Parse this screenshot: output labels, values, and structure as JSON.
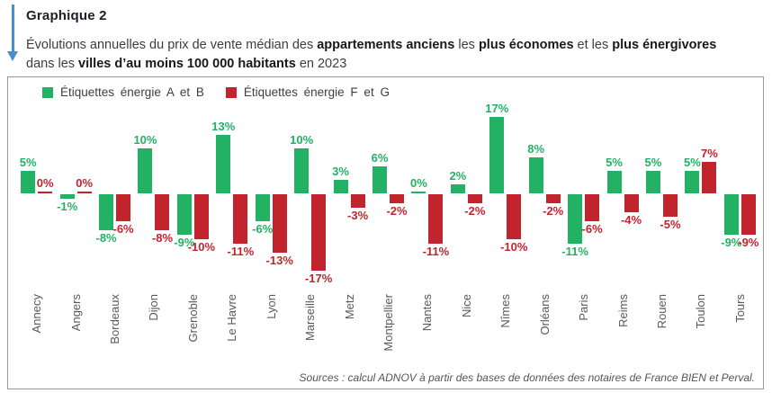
{
  "header": {
    "label": "Graphique 2",
    "description_lines": [
      [
        {
          "text": "Évolutions annuelles du prix de vente médian des ",
          "bold": false
        },
        {
          "text": "appartements anciens",
          "bold": true
        },
        {
          "text": " les ",
          "bold": false
        },
        {
          "text": "plus économes",
          "bold": true
        },
        {
          "text": " et les ",
          "bold": false
        },
        {
          "text": "plus énergivores",
          "bold": true
        }
      ],
      [
        {
          "text": "dans les ",
          "bold": false
        },
        {
          "text": "villes d’au moins 100 000 habitants",
          "bold": true
        },
        {
          "text": " en 2023",
          "bold": false
        }
      ]
    ]
  },
  "chart": {
    "source": "Sources : calcul ADNOV à partir des bases de données des notaires de France BIEN et Perval."
  },
  "chart_data": {
    "type": "bar",
    "title": "Graphique 2 — Évolutions annuelles du prix de vente médian des appartements anciens les plus économes et les plus énergivores dans les villes d’au moins 100 000 habitants en 2023",
    "xlabel": "",
    "ylabel": "",
    "value_suffix": "%",
    "ylim": [
      -17,
      17
    ],
    "grid": false,
    "legend_position": "top",
    "categories": [
      "Annecy",
      "Angers",
      "Bordeaux",
      "Dijon",
      "Grenoble",
      "Le Havre",
      "Lyon",
      "Marseille",
      "Metz",
      "Montpellier",
      "Nantes",
      "Nice",
      "Nîmes",
      "Orléans",
      "Paris",
      "Reims",
      "Rouen",
      "Toulon",
      "Tours"
    ],
    "series": [
      {
        "name": "Étiquettes énergie A et B",
        "color": "#23b164",
        "values": [
          5,
          -1,
          -8,
          10,
          -9,
          13,
          -6,
          10,
          3,
          6,
          0,
          2,
          17,
          8,
          -11,
          5,
          5,
          5,
          -9
        ]
      },
      {
        "name": "Étiquettes énergie F et G",
        "color": "#c2242e",
        "values": [
          0,
          0,
          -6,
          -8,
          -10,
          -11,
          -13,
          -17,
          -3,
          -2,
          -11,
          -2,
          -10,
          -2,
          -6,
          -4,
          -5,
          7,
          -9
        ]
      }
    ]
  },
  "colors": {
    "arrow_blue": "#478fce",
    "positive_green": "#23b164",
    "negative_red": "#c2242e"
  }
}
